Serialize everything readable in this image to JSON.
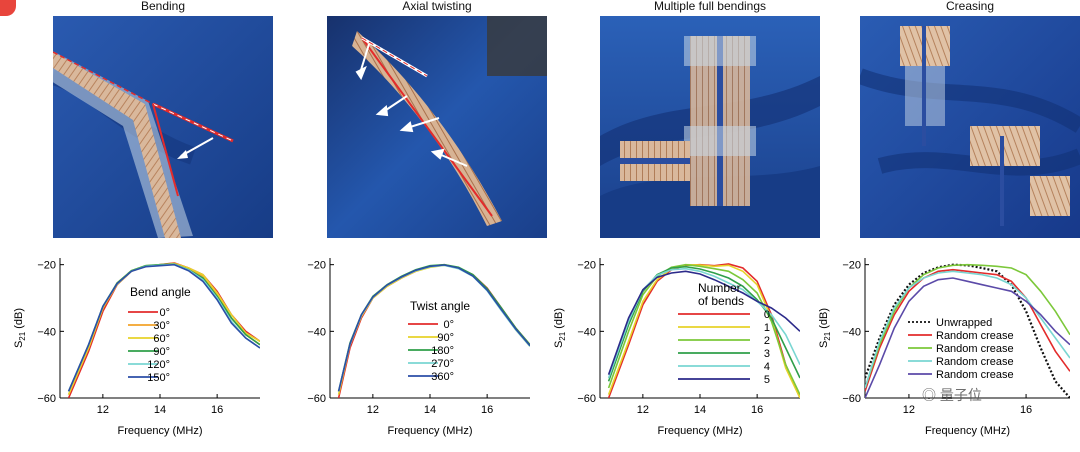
{
  "panels": [
    {
      "title": "Bending"
    },
    {
      "title": "Axial twisting"
    },
    {
      "title": "Multiple full bendings"
    },
    {
      "title": "Creasing"
    }
  ],
  "colors": {
    "fabric": "#1f4fa3",
    "fabric_dark": "#173c86",
    "tape": "#d8b79a",
    "red": "#e32b2b",
    "orange": "#f3a22a",
    "yellow": "#e7d32a",
    "green": "#7cc83a",
    "dgreen": "#2f9f4a",
    "cyan": "#79d6d2",
    "blue": "#2c4ea7",
    "purple": "#5b4aa8"
  },
  "watermark": {
    "text": "量子位"
  },
  "chart_data": [
    {
      "type": "line",
      "xlabel": "Frequency (MHz)",
      "ylabel": "S21 (dB)",
      "xlim": [
        10.5,
        17.5
      ],
      "ylim": [
        -60,
        -18
      ],
      "xticks": [
        12,
        14,
        16
      ],
      "yticks": [
        -20,
        -40,
        -60
      ],
      "legend_title": "Bend angle",
      "series": [
        {
          "name": "0°",
          "color": "#e32b2b",
          "x": [
            10.8,
            11.5,
            12,
            12.5,
            13,
            13.5,
            14,
            14.5,
            15,
            15.5,
            16,
            16.5,
            17,
            17.5
          ],
          "y": [
            -60,
            -46,
            -34,
            -26,
            -22,
            -20.5,
            -20,
            -19.5,
            -21,
            -23,
            -28,
            -35,
            -40,
            -43
          ]
        },
        {
          "name": "30°",
          "color": "#f3a22a",
          "x": [
            10.8,
            11.5,
            12,
            12.5,
            13,
            13.5,
            14,
            14.5,
            15,
            15.5,
            16,
            16.5,
            17,
            17.5
          ],
          "y": [
            -59,
            -45,
            -33,
            -26,
            -22,
            -20.4,
            -20,
            -19.6,
            -21,
            -23.5,
            -29,
            -36,
            -41,
            -44
          ]
        },
        {
          "name": "60°",
          "color": "#e7d32a",
          "x": [
            10.8,
            11.5,
            12,
            12.5,
            13,
            13.5,
            14,
            14.5,
            15,
            15.5,
            16,
            16.5,
            17,
            17.5
          ],
          "y": [
            -59,
            -45,
            -33,
            -25.5,
            -21.8,
            -20.3,
            -20.1,
            -19.7,
            -21,
            -23,
            -28.5,
            -35,
            -40.5,
            -43
          ]
        },
        {
          "name": "90°",
          "color": "#2f9f4a",
          "x": [
            10.8,
            11.5,
            12,
            12.5,
            13,
            13.5,
            14,
            14.5,
            15,
            15.5,
            16,
            16.5,
            17,
            17.5
          ],
          "y": [
            -58,
            -44,
            -32.5,
            -25.5,
            -21.8,
            -20.3,
            -20,
            -19.8,
            -21.5,
            -24,
            -29.5,
            -36,
            -41,
            -44
          ]
        },
        {
          "name": "120°",
          "color": "#79d6d2",
          "x": [
            10.8,
            11.5,
            12,
            12.5,
            13,
            13.5,
            14,
            14.5,
            15,
            15.5,
            16,
            16.5,
            17,
            17.5
          ],
          "y": [
            -58,
            -44,
            -32.5,
            -25.8,
            -22,
            -20.5,
            -20.2,
            -19.9,
            -21.6,
            -24.5,
            -30,
            -37,
            -42,
            -45
          ]
        },
        {
          "name": "150°",
          "color": "#2c4ea7",
          "x": [
            10.8,
            11.5,
            12,
            12.5,
            13,
            13.5,
            14,
            14.5,
            15,
            15.5,
            16,
            16.5,
            17,
            17.5
          ],
          "y": [
            -58,
            -44,
            -32.5,
            -25.7,
            -22,
            -20.6,
            -20.3,
            -20,
            -21.8,
            -25,
            -30.5,
            -37.5,
            -42,
            -45
          ]
        }
      ]
    },
    {
      "type": "line",
      "xlabel": "Frequency (MHz)",
      "ylabel": "",
      "xlim": [
        10.5,
        17.5
      ],
      "ylim": [
        -60,
        -18
      ],
      "xticks": [
        12,
        14,
        16
      ],
      "yticks": [
        -20,
        -40,
        -60
      ],
      "legend_title": "Twist angle",
      "series": [
        {
          "name": "0°",
          "color": "#e32b2b",
          "x": [
            10.8,
            11.2,
            11.6,
            12,
            12.5,
            13,
            13.5,
            14,
            14.5,
            15,
            15.5,
            16,
            16.5,
            17,
            17.5
          ],
          "y": [
            -60,
            -45,
            -36,
            -30,
            -26.5,
            -24,
            -22,
            -20.5,
            -20,
            -21,
            -23,
            -27,
            -33,
            -39,
            -44
          ]
        },
        {
          "name": "90°",
          "color": "#e7d32a",
          "x": [
            10.8,
            11.2,
            11.6,
            12,
            12.5,
            13,
            13.5,
            14,
            14.5,
            15,
            15.5,
            16,
            16.5,
            17,
            17.5
          ],
          "y": [
            -59,
            -44,
            -35.5,
            -30,
            -26.5,
            -24,
            -22,
            -20.8,
            -20.2,
            -21,
            -23.2,
            -27.5,
            -33.5,
            -39.5,
            -44.5
          ]
        },
        {
          "name": "180°",
          "color": "#2f9f4a",
          "x": [
            10.8,
            11.2,
            11.6,
            12,
            12.5,
            13,
            13.5,
            14,
            14.5,
            15,
            15.5,
            16,
            16.5,
            17,
            17.5
          ],
          "y": [
            -58,
            -43.5,
            -35,
            -29.5,
            -26,
            -23.5,
            -21.5,
            -20.3,
            -20,
            -20.8,
            -23,
            -27.2,
            -33,
            -39,
            -44
          ]
        },
        {
          "name": "270°",
          "color": "#79d6d2",
          "x": [
            10.8,
            11.2,
            11.6,
            12,
            12.5,
            13,
            13.5,
            14,
            14.5,
            15,
            15.5,
            16,
            16.5,
            17,
            17.5
          ],
          "y": [
            -58,
            -44,
            -35.2,
            -29.8,
            -26.2,
            -23.8,
            -21.8,
            -20.6,
            -20.2,
            -21.2,
            -23.5,
            -27.8,
            -33.8,
            -39.5,
            -44.5
          ]
        },
        {
          "name": "360°",
          "color": "#2c4ea7",
          "x": [
            10.8,
            11.2,
            11.6,
            12,
            12.5,
            13,
            13.5,
            14,
            14.5,
            15,
            15.5,
            16,
            16.5,
            17,
            17.5
          ],
          "y": [
            -58,
            -43.8,
            -35,
            -29.7,
            -26.1,
            -23.7,
            -21.7,
            -20.5,
            -20.1,
            -21,
            -23.4,
            -27.6,
            -33.5,
            -39.3,
            -44.3
          ]
        }
      ]
    },
    {
      "type": "line",
      "xlabel": "Frequency (MHz)",
      "ylabel": "S21 (dB)",
      "xlim": [
        10.5,
        17.5
      ],
      "ylim": [
        -60,
        -18
      ],
      "xticks": [
        12,
        14,
        16
      ],
      "yticks": [
        -20,
        -40,
        -60
      ],
      "legend_title": "Number\nof bends",
      "series": [
        {
          "name": "0",
          "color": "#e32b2b",
          "x": [
            10.8,
            11.5,
            12,
            12.5,
            13,
            13.5,
            14,
            14.5,
            15,
            15.5,
            16,
            16.5,
            17,
            17.5
          ],
          "y": [
            -60,
            -44,
            -32,
            -25,
            -21.5,
            -20.2,
            -20,
            -20.3,
            -19.8,
            -21,
            -25,
            -35,
            -50,
            -60
          ]
        },
        {
          "name": "1",
          "color": "#e7d32a",
          "x": [
            10.8,
            11.5,
            12,
            12.5,
            13,
            13.5,
            14,
            14.5,
            15,
            15.5,
            16,
            16.5,
            17,
            17.5
          ],
          "y": [
            -59,
            -43,
            -31,
            -24.5,
            -21.2,
            -20,
            -20.1,
            -20.5,
            -20.2,
            -22,
            -26,
            -36,
            -51,
            -60
          ]
        },
        {
          "name": "2",
          "color": "#7cc83a",
          "x": [
            10.8,
            11.5,
            12,
            12.5,
            13,
            13.5,
            14,
            14.5,
            15,
            15.5,
            16,
            16.5,
            17,
            17.5
          ],
          "y": [
            -57,
            -40,
            -29,
            -23.5,
            -20.8,
            -20,
            -20.5,
            -21.2,
            -22,
            -24.5,
            -28.5,
            -37,
            -50,
            -59
          ]
        },
        {
          "name": "3",
          "color": "#2f9f4a",
          "x": [
            10.8,
            11.5,
            12,
            12.5,
            13,
            13.5,
            14,
            14.5,
            15,
            15.5,
            16,
            16.5,
            17,
            17.5
          ],
          "y": [
            -55,
            -38,
            -28,
            -23,
            -21,
            -20.6,
            -21.3,
            -22.5,
            -24,
            -26.5,
            -30.5,
            -36,
            -45,
            -54
          ]
        },
        {
          "name": "4",
          "color": "#79d6d2",
          "x": [
            10.8,
            11.5,
            12,
            12.5,
            13,
            13.5,
            14,
            14.5,
            15,
            15.5,
            16,
            16.5,
            17,
            17.5
          ],
          "y": [
            -54,
            -37,
            -27.5,
            -23.2,
            -21.5,
            -21.2,
            -22,
            -23.5,
            -25.5,
            -27.5,
            -31,
            -35,
            -41,
            -50
          ]
        },
        {
          "name": "5",
          "color": "#2c2a8a",
          "x": [
            10.8,
            11.5,
            12,
            12.5,
            13,
            13.5,
            14,
            14.5,
            15,
            15.5,
            16,
            16.5,
            17,
            17.5
          ],
          "y": [
            -53,
            -36,
            -27.5,
            -23.8,
            -22.5,
            -22,
            -22.8,
            -24.5,
            -26.5,
            -28.5,
            -31,
            -33,
            -36,
            -40
          ]
        }
      ]
    },
    {
      "type": "line",
      "xlabel": "Frequency (MHz)",
      "ylabel": "S21 (dB)",
      "xlim": [
        10.5,
        17.5
      ],
      "ylim": [
        -60,
        -18
      ],
      "xticks": [
        12,
        16
      ],
      "yticks": [
        -20,
        -40,
        -60
      ],
      "legend_title": "",
      "series": [
        {
          "name": "Unwrapped",
          "color": "#111111",
          "dash": true,
          "x": [
            10.5,
            11,
            11.5,
            12,
            12.5,
            13,
            13.5,
            14,
            14.5,
            15,
            15.5,
            16,
            16.5,
            17,
            17.5
          ],
          "y": [
            -54,
            -42,
            -32,
            -26,
            -22.5,
            -20.8,
            -20,
            -20.2,
            -21,
            -22,
            -26,
            -34,
            -45,
            -55,
            -60
          ]
        },
        {
          "name": "Random crease",
          "color": "#e32b2b",
          "x": [
            10.5,
            11,
            11.5,
            12,
            12.5,
            13,
            13.5,
            14,
            14.5,
            15,
            15.5,
            16,
            16.5,
            17,
            17.5
          ],
          "y": [
            -58,
            -45,
            -35,
            -28,
            -24,
            -22,
            -21.5,
            -22,
            -22.5,
            -23,
            -25,
            -30,
            -38,
            -46,
            -52
          ]
        },
        {
          "name": "Random crease",
          "color": "#7cc83a",
          "x": [
            10.5,
            11,
            11.5,
            12,
            12.5,
            13,
            13.5,
            14,
            14.5,
            15,
            15.5,
            16,
            16.5,
            17,
            17.5
          ],
          "y": [
            -57,
            -44,
            -34,
            -27,
            -23,
            -21,
            -20.2,
            -20,
            -20.2,
            -20.5,
            -21,
            -23,
            -28,
            -34,
            -41
          ]
        },
        {
          "name": "Random crease",
          "color": "#79d6d2",
          "x": [
            10.5,
            11,
            11.5,
            12,
            12.5,
            13,
            13.5,
            14,
            14.5,
            15,
            15.5,
            16,
            16.5,
            17,
            17.5
          ],
          "y": [
            -57,
            -43,
            -33,
            -27,
            -24,
            -22.5,
            -22,
            -22.5,
            -23,
            -24,
            -26,
            -30,
            -36,
            -42,
            -48
          ]
        },
        {
          "name": "Random crease",
          "color": "#5b4aa8",
          "x": [
            10.5,
            11,
            11.5,
            12,
            12.5,
            13,
            13.5,
            14,
            14.5,
            15,
            15.5,
            16,
            16.5,
            17,
            17.5
          ],
          "y": [
            -60,
            -50,
            -39,
            -31,
            -26.5,
            -24.5,
            -24,
            -25,
            -26,
            -27,
            -28,
            -31,
            -35,
            -40,
            -44
          ]
        }
      ]
    }
  ]
}
